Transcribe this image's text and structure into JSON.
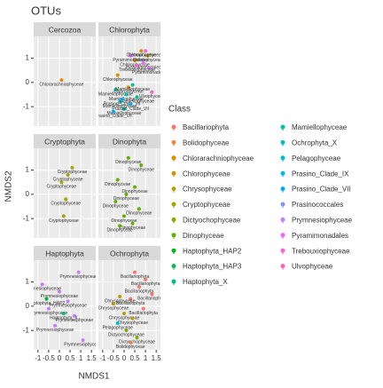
{
  "chart_data": {
    "type": "scatter",
    "title": "OTUs",
    "xlabel": "NMDS1",
    "ylabel": "NMDS2",
    "legend_title": "Class",
    "xlim": [
      -1.2,
      1.7
    ],
    "ylim": [
      -1.8,
      1.9
    ],
    "xticks": [
      -1.0,
      -0.5,
      0.0,
      0.5,
      1.0,
      1.5
    ],
    "yticks": [
      -1,
      0,
      1
    ],
    "grid": true,
    "classes": [
      {
        "name": "Bacillariophyta",
        "color": "#F8766D"
      },
      {
        "name": "Bolidophyceae",
        "color": "#EE8044"
      },
      {
        "name": "Chlorarachniophyceae",
        "color": "#E08B00"
      },
      {
        "name": "Chlorophyceae",
        "color": "#CF9400"
      },
      {
        "name": "Chrysophyceae",
        "color": "#BB9D00"
      },
      {
        "name": "Cryptophyceae",
        "color": "#A3A500"
      },
      {
        "name": "Dictyochophyceae",
        "color": "#85AD00"
      },
      {
        "name": "Dinophyceae",
        "color": "#5BB300"
      },
      {
        "name": "Haptophyta_HAP2",
        "color": "#00B81F"
      },
      {
        "name": "Haptophyta_HAP3",
        "color": "#00BC59"
      },
      {
        "name": "Haptophyta_X",
        "color": "#00BF7D"
      },
      {
        "name": "Mamiellophyceae",
        "color": "#00C09E"
      },
      {
        "name": "Ochrophyta_X",
        "color": "#00BFBC"
      },
      {
        "name": "Pelagophyceae",
        "color": "#00BCD8"
      },
      {
        "name": "Prasino_Clade_IX",
        "color": "#00B5EE"
      },
      {
        "name": "Prasino_Clade_VII",
        "color": "#00A9FF"
      },
      {
        "name": "Prasinococcales",
        "color": "#7F96FF"
      },
      {
        "name": "Prymnesiophyceae",
        "color": "#C77CFF"
      },
      {
        "name": "Pyramimonadales",
        "color": "#E76BF3"
      },
      {
        "name": "Trebouxiophyceae",
        "color": "#FA62DB"
      },
      {
        "name": "Ulvophyceae",
        "color": "#FF62BC"
      }
    ],
    "facets": [
      {
        "name": "Cercozoa",
        "series": [
          {
            "name": "Chlorarachniophyceae",
            "color": "#E08B00",
            "x": [
              0.1
            ],
            "y": [
              0.1
            ]
          }
        ]
      },
      {
        "name": "Chlorophyta",
        "series": [
          {
            "name": "Chlorophyceae",
            "color": "#CF9400",
            "x": [
              0.8,
              1.1,
              0.5,
              -0.3,
              0.2
            ],
            "y": [
              1.3,
              1.1,
              0.9,
              0.3,
              -0.2
            ]
          },
          {
            "name": "Mamiellophyceae",
            "color": "#00C09E",
            "x": [
              -0.4,
              0.1,
              0.4,
              -0.2,
              0.6,
              0.0
            ],
            "y": [
              -0.3,
              -0.5,
              -0.1,
              -0.8,
              -0.6,
              -1.1
            ]
          },
          {
            "name": "Prasino_Clade_VII",
            "color": "#00A9FF",
            "x": [
              -0.1,
              0.3,
              -0.5
            ],
            "y": [
              -0.7,
              -0.9,
              -1.2
            ]
          },
          {
            "name": "Pyramimonadales",
            "color": "#E76BF3",
            "x": [
              0.9,
              0.3,
              1.2
            ],
            "y": [
              0.8,
              1.1,
              0.6
            ]
          },
          {
            "name": "Trebouxiophyceae",
            "color": "#FA62DB",
            "x": [
              0.6,
              1.0
            ],
            "y": [
              0.7,
              1.3
            ]
          },
          {
            "name": "Ulvophyceae",
            "color": "#FF62BC",
            "x": [
              1.3
            ],
            "y": [
              -0.4
            ]
          }
        ]
      },
      {
        "name": "Cryptophyta",
        "series": [
          {
            "name": "Cryptophyceae",
            "color": "#A3A500",
            "x": [
              0.6,
              0.4,
              0.1,
              0.3,
              0.2
            ],
            "y": [
              1.1,
              0.8,
              0.5,
              -0.2,
              -0.9
            ]
          }
        ]
      },
      {
        "name": "Dinophyta",
        "series": [
          {
            "name": "Dinophyceae",
            "color": "#5BB300",
            "x": [
              0.2,
              0.8,
              -0.3,
              0.5,
              0.1,
              -0.4,
              0.7,
              0.0,
              0.4,
              -0.2
            ],
            "y": [
              1.5,
              1.2,
              0.6,
              0.3,
              0.0,
              -0.3,
              -0.6,
              -0.9,
              -1.2,
              -1.3
            ]
          }
        ]
      },
      {
        "name": "Haptophyta",
        "series": [
          {
            "name": "Prymnesiophyceae",
            "color": "#C77CFF",
            "x": [
              0.9,
              -0.8,
              0.0,
              0.4,
              -0.5,
              0.7,
              -0.2,
              1.1
            ],
            "y": [
              1.4,
              0.9,
              0.6,
              0.2,
              -0.1,
              -0.4,
              -0.8,
              -1.4
            ]
          },
          {
            "name": "Haptophyta_HAP2",
            "color": "#00B81F",
            "x": [
              -0.6
            ],
            "y": [
              0.3
            ]
          },
          {
            "name": "Haptophyta_X",
            "color": "#00BF7D",
            "x": [
              0.2
            ],
            "y": [
              -0.3
            ]
          }
        ]
      },
      {
        "name": "Ochrophyta",
        "series": [
          {
            "name": "Bacillariophyta",
            "color": "#F8766D",
            "x": [
              0.5,
              1.0,
              0.7,
              1.3,
              0.3,
              0.9
            ],
            "y": [
              1.4,
              1.1,
              0.8,
              0.5,
              0.3,
              -0.1
            ]
          },
          {
            "name": "Chrysophyceae",
            "color": "#BB9D00",
            "x": [
              -0.5,
              0.0,
              0.4,
              -0.2
            ],
            "y": [
              0.1,
              -0.3,
              -0.5,
              0.4
            ]
          },
          {
            "name": "Dictyochophyceae",
            "color": "#85AD00",
            "x": [
              0.1,
              0.6
            ],
            "y": [
              -1.0,
              -1.3
            ]
          },
          {
            "name": "Bolidophyceae",
            "color": "#EE8044",
            "x": [
              0.3
            ],
            "y": [
              -1.5
            ]
          },
          {
            "name": "Pelagophyceae",
            "color": "#00BCD8",
            "x": [
              -0.3
            ],
            "y": [
              -0.7
            ]
          }
        ]
      }
    ]
  }
}
